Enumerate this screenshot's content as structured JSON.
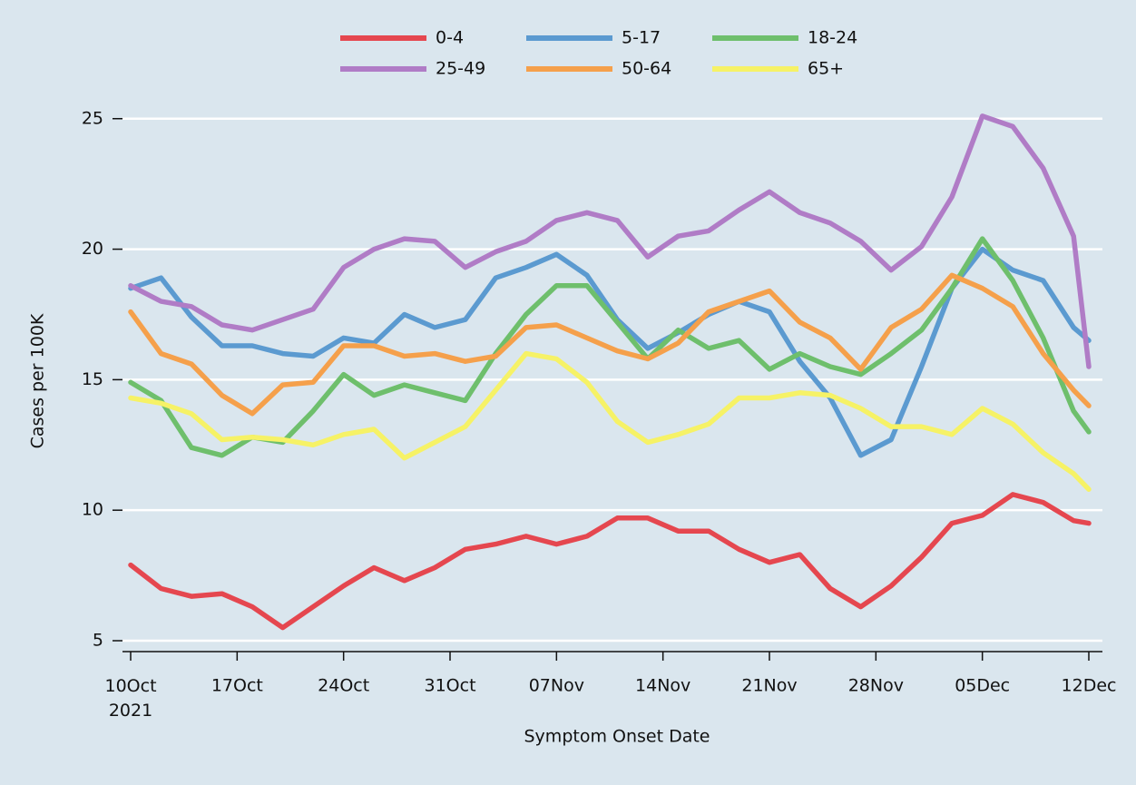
{
  "chart_data": {
    "type": "line",
    "x_label": "Symptom Onset Date",
    "y_label": "Cases per 100K",
    "x": [
      "2021-10-10",
      "2021-10-12",
      "2021-10-14",
      "2021-10-16",
      "2021-10-18",
      "2021-10-20",
      "2021-10-22",
      "2021-10-24",
      "2021-10-26",
      "2021-10-28",
      "2021-10-30",
      "2021-11-01",
      "2021-11-03",
      "2021-11-05",
      "2021-11-07",
      "2021-11-09",
      "2021-11-11",
      "2021-11-13",
      "2021-11-15",
      "2021-11-17",
      "2021-11-19",
      "2021-11-21",
      "2021-11-23",
      "2021-11-25",
      "2021-11-27",
      "2021-11-29",
      "2021-12-01",
      "2021-12-03",
      "2021-12-05",
      "2021-12-07",
      "2021-12-09",
      "2021-12-11",
      "2021-12-12"
    ],
    "series": [
      {
        "name": "0-4",
        "color": "#e5474f",
        "values": [
          7.9,
          7.0,
          6.7,
          6.8,
          6.3,
          5.5,
          6.3,
          7.1,
          7.8,
          7.3,
          7.8,
          8.5,
          8.7,
          9.0,
          8.7,
          9.0,
          9.7,
          9.7,
          9.2,
          9.2,
          8.5,
          8.0,
          8.3,
          7.0,
          6.3,
          7.1,
          8.2,
          9.5,
          9.8,
          10.6,
          10.3,
          9.6,
          9.5
        ]
      },
      {
        "name": "5-17",
        "color": "#5b9ad0",
        "values": [
          18.5,
          18.9,
          17.4,
          16.3,
          16.3,
          16.0,
          15.9,
          16.6,
          16.4,
          17.5,
          17.0,
          17.3,
          18.9,
          19.3,
          19.8,
          19.0,
          17.3,
          16.2,
          16.8,
          17.5,
          18.0,
          17.6,
          15.7,
          14.3,
          12.1,
          12.7,
          15.5,
          18.5,
          20.0,
          19.2,
          18.8,
          17.0,
          16.5
        ]
      },
      {
        "name": "18-24",
        "color": "#6ebf6c",
        "values": [
          14.9,
          14.2,
          12.4,
          12.1,
          12.8,
          12.6,
          13.8,
          15.2,
          14.4,
          14.8,
          14.5,
          14.2,
          16.0,
          17.5,
          18.6,
          18.6,
          17.2,
          15.8,
          16.9,
          16.2,
          16.5,
          15.4,
          16.0,
          15.5,
          15.2,
          16.0,
          16.9,
          18.5,
          20.4,
          18.8,
          16.6,
          13.8,
          13.0
        ]
      },
      {
        "name": "25-49",
        "color": "#b07cc6",
        "values": [
          18.6,
          18.0,
          17.8,
          17.1,
          16.9,
          17.3,
          17.7,
          19.3,
          20.0,
          20.4,
          20.3,
          19.3,
          19.9,
          20.3,
          21.1,
          21.4,
          21.1,
          19.7,
          20.5,
          20.7,
          21.5,
          22.2,
          21.4,
          21.0,
          20.3,
          19.2,
          20.1,
          22.0,
          25.1,
          24.7,
          23.1,
          20.5,
          15.5
        ]
      },
      {
        "name": "50-64",
        "color": "#f5a04b",
        "values": [
          17.6,
          16.0,
          15.6,
          14.4,
          13.7,
          14.8,
          14.9,
          16.3,
          16.3,
          15.9,
          16.0,
          15.7,
          15.9,
          17.0,
          17.1,
          16.6,
          16.1,
          15.8,
          16.4,
          17.6,
          18.0,
          18.4,
          17.2,
          16.6,
          15.4,
          17.0,
          17.7,
          19.0,
          18.5,
          17.8,
          16.0,
          14.6,
          14.0
        ]
      },
      {
        "name": "65+",
        "color": "#f6f266",
        "values": [
          14.3,
          14.1,
          13.7,
          12.7,
          12.8,
          12.7,
          12.5,
          12.9,
          13.1,
          12.0,
          12.6,
          13.2,
          14.6,
          16.0,
          15.8,
          14.9,
          13.4,
          12.6,
          12.9,
          13.3,
          14.3,
          14.3,
          14.5,
          14.4,
          13.9,
          13.2,
          13.2,
          12.9,
          13.9,
          13.3,
          12.2,
          11.4,
          10.8
        ]
      }
    ],
    "xlim": [
      "2021-10-10",
      "2021-12-12"
    ],
    "xticks": [
      {
        "value": "2021-10-10",
        "label": "10Oct\n2021"
      },
      {
        "value": "2021-10-17",
        "label": "17Oct"
      },
      {
        "value": "2021-10-24",
        "label": "24Oct"
      },
      {
        "value": "2021-10-31",
        "label": "31Oct"
      },
      {
        "value": "2021-11-07",
        "label": "07Nov"
      },
      {
        "value": "2021-11-14",
        "label": "14Nov"
      },
      {
        "value": "2021-11-21",
        "label": "21Nov"
      },
      {
        "value": "2021-11-28",
        "label": "28Nov"
      },
      {
        "value": "2021-12-05",
        "label": "05Dec"
      },
      {
        "value": "2021-12-12",
        "label": "12Dec"
      }
    ],
    "ylim": [
      4.6,
      26
    ],
    "yticks": [
      5,
      10,
      15,
      20,
      25
    ],
    "grid": true,
    "legend": "top"
  }
}
